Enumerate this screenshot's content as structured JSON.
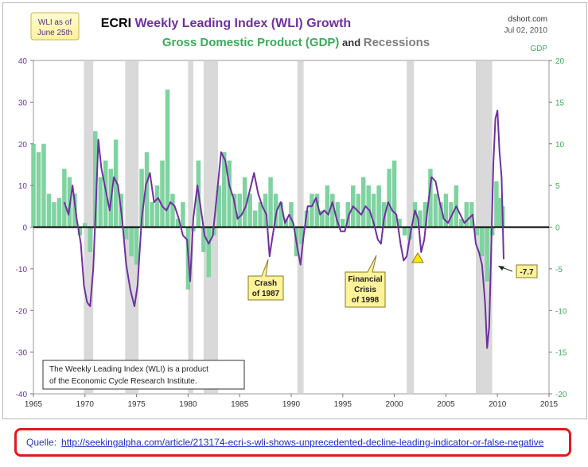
{
  "chart_data": {
    "type": "line",
    "title_parts": [
      "ECRI ",
      "Weekly Leading Index (WLI) Growth"
    ],
    "subtitle_parts": [
      "Gross Domestic Product (GDP)",
      " and ",
      "Recessions"
    ],
    "source_label": "dshort.com",
    "date_label": "Jul 02, 2010",
    "badge_lines": [
      "WLI as of",
      "June 25th"
    ],
    "y2_title": "GDP",
    "xlim": [
      1965,
      2015
    ],
    "ylim_left": [
      -40,
      40
    ],
    "ylim_right": [
      -20,
      20
    ],
    "x_ticks": [
      "1965",
      "1970",
      "1975",
      "1980",
      "1985",
      "1990",
      "1995",
      "2000",
      "2005",
      "2010",
      "2015"
    ],
    "y_left_ticks": [
      "40",
      "30",
      "20",
      "10",
      "0",
      "-10",
      "-20",
      "-30",
      "-40"
    ],
    "y_right_ticks": [
      "20",
      "15",
      "10",
      "5",
      "0",
      "-5",
      "-10",
      "-15",
      "-20"
    ],
    "colors": {
      "wli": "#7030a0",
      "gdp": "#7fd3a0",
      "recession": "#d9d9d9",
      "title_purple": "#7030a0",
      "title_green": "#3caa5a",
      "axis_left": "#7030a0",
      "axis_right": "#3caa5a"
    },
    "recessions": [
      [
        1969.9,
        1970.8
      ],
      [
        1973.9,
        1975.2
      ],
      [
        1980.0,
        1980.5
      ],
      [
        1981.5,
        1982.9
      ],
      [
        1990.6,
        1991.2
      ],
      [
        2001.2,
        2001.9
      ],
      [
        2007.9,
        2009.5
      ]
    ],
    "series": [
      {
        "name": "WLI Growth",
        "axis": "left",
        "points": [
          [
            1968.0,
            6
          ],
          [
            1968.4,
            3
          ],
          [
            1968.8,
            10
          ],
          [
            1969.2,
            2
          ],
          [
            1969.6,
            -4
          ],
          [
            1969.9,
            -14
          ],
          [
            1970.2,
            -18
          ],
          [
            1970.5,
            -19
          ],
          [
            1970.8,
            -10
          ],
          [
            1971.1,
            8
          ],
          [
            1971.3,
            21
          ],
          [
            1971.6,
            14
          ],
          [
            1972.0,
            9
          ],
          [
            1972.4,
            4
          ],
          [
            1972.8,
            12
          ],
          [
            1973.2,
            10
          ],
          [
            1973.6,
            2
          ],
          [
            1974.0,
            -9
          ],
          [
            1974.4,
            -15
          ],
          [
            1974.8,
            -19
          ],
          [
            1975.1,
            -14
          ],
          [
            1975.5,
            2
          ],
          [
            1975.9,
            10
          ],
          [
            1976.3,
            13
          ],
          [
            1976.7,
            6
          ],
          [
            1977.1,
            7
          ],
          [
            1977.5,
            5
          ],
          [
            1977.9,
            4
          ],
          [
            1978.3,
            6
          ],
          [
            1978.7,
            5
          ],
          [
            1979.1,
            2
          ],
          [
            1979.5,
            -2
          ],
          [
            1979.9,
            -3
          ],
          [
            1980.2,
            -13
          ],
          [
            1980.5,
            2
          ],
          [
            1980.9,
            10
          ],
          [
            1981.2,
            5
          ],
          [
            1981.6,
            -2
          ],
          [
            1982.0,
            -4
          ],
          [
            1982.4,
            -2
          ],
          [
            1982.8,
            8
          ],
          [
            1983.2,
            18
          ],
          [
            1983.6,
            16
          ],
          [
            1984.0,
            10
          ],
          [
            1984.4,
            7
          ],
          [
            1984.8,
            2
          ],
          [
            1985.2,
            3
          ],
          [
            1985.6,
            5
          ],
          [
            1986.0,
            9
          ],
          [
            1986.4,
            13
          ],
          [
            1986.8,
            8
          ],
          [
            1987.2,
            5
          ],
          [
            1987.6,
            3
          ],
          [
            1987.9,
            -7
          ],
          [
            1988.2,
            -2
          ],
          [
            1988.6,
            4
          ],
          [
            1989.0,
            6
          ],
          [
            1989.4,
            1
          ],
          [
            1989.8,
            3
          ],
          [
            1990.2,
            1
          ],
          [
            1990.6,
            -5
          ],
          [
            1990.9,
            -9
          ],
          [
            1991.2,
            -2
          ],
          [
            1991.6,
            5
          ],
          [
            1992.0,
            5
          ],
          [
            1992.4,
            7
          ],
          [
            1992.8,
            3
          ],
          [
            1993.2,
            4
          ],
          [
            1993.6,
            3
          ],
          [
            1994.0,
            6
          ],
          [
            1994.4,
            2
          ],
          [
            1994.8,
            -1
          ],
          [
            1995.2,
            -1
          ],
          [
            1995.6,
            3
          ],
          [
            1996.0,
            5
          ],
          [
            1996.4,
            4
          ],
          [
            1996.8,
            3
          ],
          [
            1997.2,
            5
          ],
          [
            1997.6,
            4
          ],
          [
            1998.0,
            1
          ],
          [
            1998.4,
            -3
          ],
          [
            1998.7,
            -4
          ],
          [
            1999.0,
            2
          ],
          [
            1999.4,
            6
          ],
          [
            1999.8,
            4
          ],
          [
            2000.2,
            3
          ],
          [
            2000.6,
            -4
          ],
          [
            2000.9,
            -8
          ],
          [
            2001.2,
            -7
          ],
          [
            2001.6,
            -1
          ],
          [
            2002.0,
            4
          ],
          [
            2002.3,
            2
          ],
          [
            2002.6,
            -6
          ],
          [
            2002.9,
            -3
          ],
          [
            2003.2,
            4
          ],
          [
            2003.6,
            12
          ],
          [
            2004.0,
            11
          ],
          [
            2004.4,
            6
          ],
          [
            2004.8,
            2
          ],
          [
            2005.2,
            1
          ],
          [
            2005.6,
            3
          ],
          [
            2006.0,
            5
          ],
          [
            2006.4,
            3
          ],
          [
            2006.8,
            1
          ],
          [
            2007.2,
            2
          ],
          [
            2007.6,
            3
          ],
          [
            2007.9,
            -4
          ],
          [
            2008.2,
            -6
          ],
          [
            2008.5,
            -9
          ],
          [
            2008.8,
            -18
          ],
          [
            2009.0,
            -29
          ],
          [
            2009.2,
            -24
          ],
          [
            2009.4,
            -5
          ],
          [
            2009.6,
            15
          ],
          [
            2009.8,
            26
          ],
          [
            2010.0,
            28
          ],
          [
            2010.2,
            18
          ],
          [
            2010.4,
            12
          ],
          [
            2010.6,
            -7.7
          ]
        ]
      },
      {
        "name": "GDP",
        "axis": "right",
        "points": [
          [
            1965.0,
            10
          ],
          [
            1965.5,
            9
          ],
          [
            1966.0,
            10
          ],
          [
            1966.5,
            4
          ],
          [
            1967.0,
            3
          ],
          [
            1967.5,
            3.5
          ],
          [
            1968.0,
            7
          ],
          [
            1968.5,
            6
          ],
          [
            1969.0,
            4
          ],
          [
            1969.5,
            -1
          ],
          [
            1970.0,
            0.5
          ],
          [
            1970.5,
            -3
          ],
          [
            1971.0,
            11.5
          ],
          [
            1971.5,
            6
          ],
          [
            1972.0,
            8
          ],
          [
            1972.5,
            7
          ],
          [
            1973.0,
            10.5
          ],
          [
            1973.5,
            4
          ],
          [
            1974.0,
            -1.5
          ],
          [
            1974.5,
            -3.5
          ],
          [
            1975.0,
            -4.5
          ],
          [
            1975.5,
            7
          ],
          [
            1976.0,
            9
          ],
          [
            1976.5,
            3
          ],
          [
            1977.0,
            5
          ],
          [
            1977.5,
            8
          ],
          [
            1978.0,
            16.5
          ],
          [
            1978.5,
            4
          ],
          [
            1979.0,
            1
          ],
          [
            1979.5,
            3
          ],
          [
            1980.0,
            -7.5
          ],
          [
            1980.5,
            -0.5
          ],
          [
            1981.0,
            8
          ],
          [
            1981.5,
            -3
          ],
          [
            1982.0,
            -6
          ],
          [
            1982.5,
            -1
          ],
          [
            1983.0,
            5
          ],
          [
            1983.5,
            9
          ],
          [
            1984.0,
            8
          ],
          [
            1984.5,
            4
          ],
          [
            1985.0,
            4
          ],
          [
            1985.5,
            6
          ],
          [
            1986.0,
            4
          ],
          [
            1986.5,
            2
          ],
          [
            1987.0,
            3
          ],
          [
            1987.5,
            4
          ],
          [
            1988.0,
            6
          ],
          [
            1988.5,
            4
          ],
          [
            1989.0,
            3
          ],
          [
            1989.5,
            1
          ],
          [
            1990.0,
            3
          ],
          [
            1990.5,
            -3.5
          ],
          [
            1991.0,
            -2
          ],
          [
            1991.5,
            2
          ],
          [
            1992.0,
            4
          ],
          [
            1992.5,
            4
          ],
          [
            1993.0,
            2
          ],
          [
            1993.5,
            5
          ],
          [
            1994.0,
            4
          ],
          [
            1994.5,
            3
          ],
          [
            1995.0,
            1
          ],
          [
            1995.5,
            3
          ],
          [
            1996.0,
            5
          ],
          [
            1996.5,
            4
          ],
          [
            1997.0,
            6
          ],
          [
            1997.5,
            5
          ],
          [
            1998.0,
            4
          ],
          [
            1998.5,
            5
          ],
          [
            1999.0,
            3
          ],
          [
            1999.5,
            7
          ],
          [
            2000.0,
            8
          ],
          [
            2000.5,
            1
          ],
          [
            2001.0,
            -1
          ],
          [
            2001.5,
            -1.5
          ],
          [
            2002.0,
            3
          ],
          [
            2002.5,
            2
          ],
          [
            2003.0,
            3
          ],
          [
            2003.5,
            7
          ],
          [
            2004.0,
            4
          ],
          [
            2004.5,
            3
          ],
          [
            2005.0,
            4
          ],
          [
            2005.5,
            3
          ],
          [
            2006.0,
            5
          ],
          [
            2006.5,
            1
          ],
          [
            2007.0,
            3
          ],
          [
            2007.5,
            3
          ],
          [
            2008.0,
            -1
          ],
          [
            2008.5,
            -3.5
          ],
          [
            2009.0,
            -6.5
          ],
          [
            2009.5,
            -1
          ],
          [
            2009.9,
            5.5
          ],
          [
            2010.2,
            3.5
          ],
          [
            2010.5,
            2.5
          ]
        ]
      }
    ],
    "annotations": {
      "crash": [
        "Crash",
        "of 1987"
      ],
      "financial": [
        "Financial",
        "Crisis",
        "of 1998"
      ],
      "latest_value": "-7.7",
      "note": [
        "The Weekly Leading Index (WLI) is a product",
        "of the Economic Cycle Research Institute."
      ]
    }
  },
  "footer": {
    "label": "Quelle:",
    "url": "http://seekingalpha.com/article/213174-ecri-s-wli-shows-unprecedented-decline-leading-indicator-or-false-negative"
  }
}
